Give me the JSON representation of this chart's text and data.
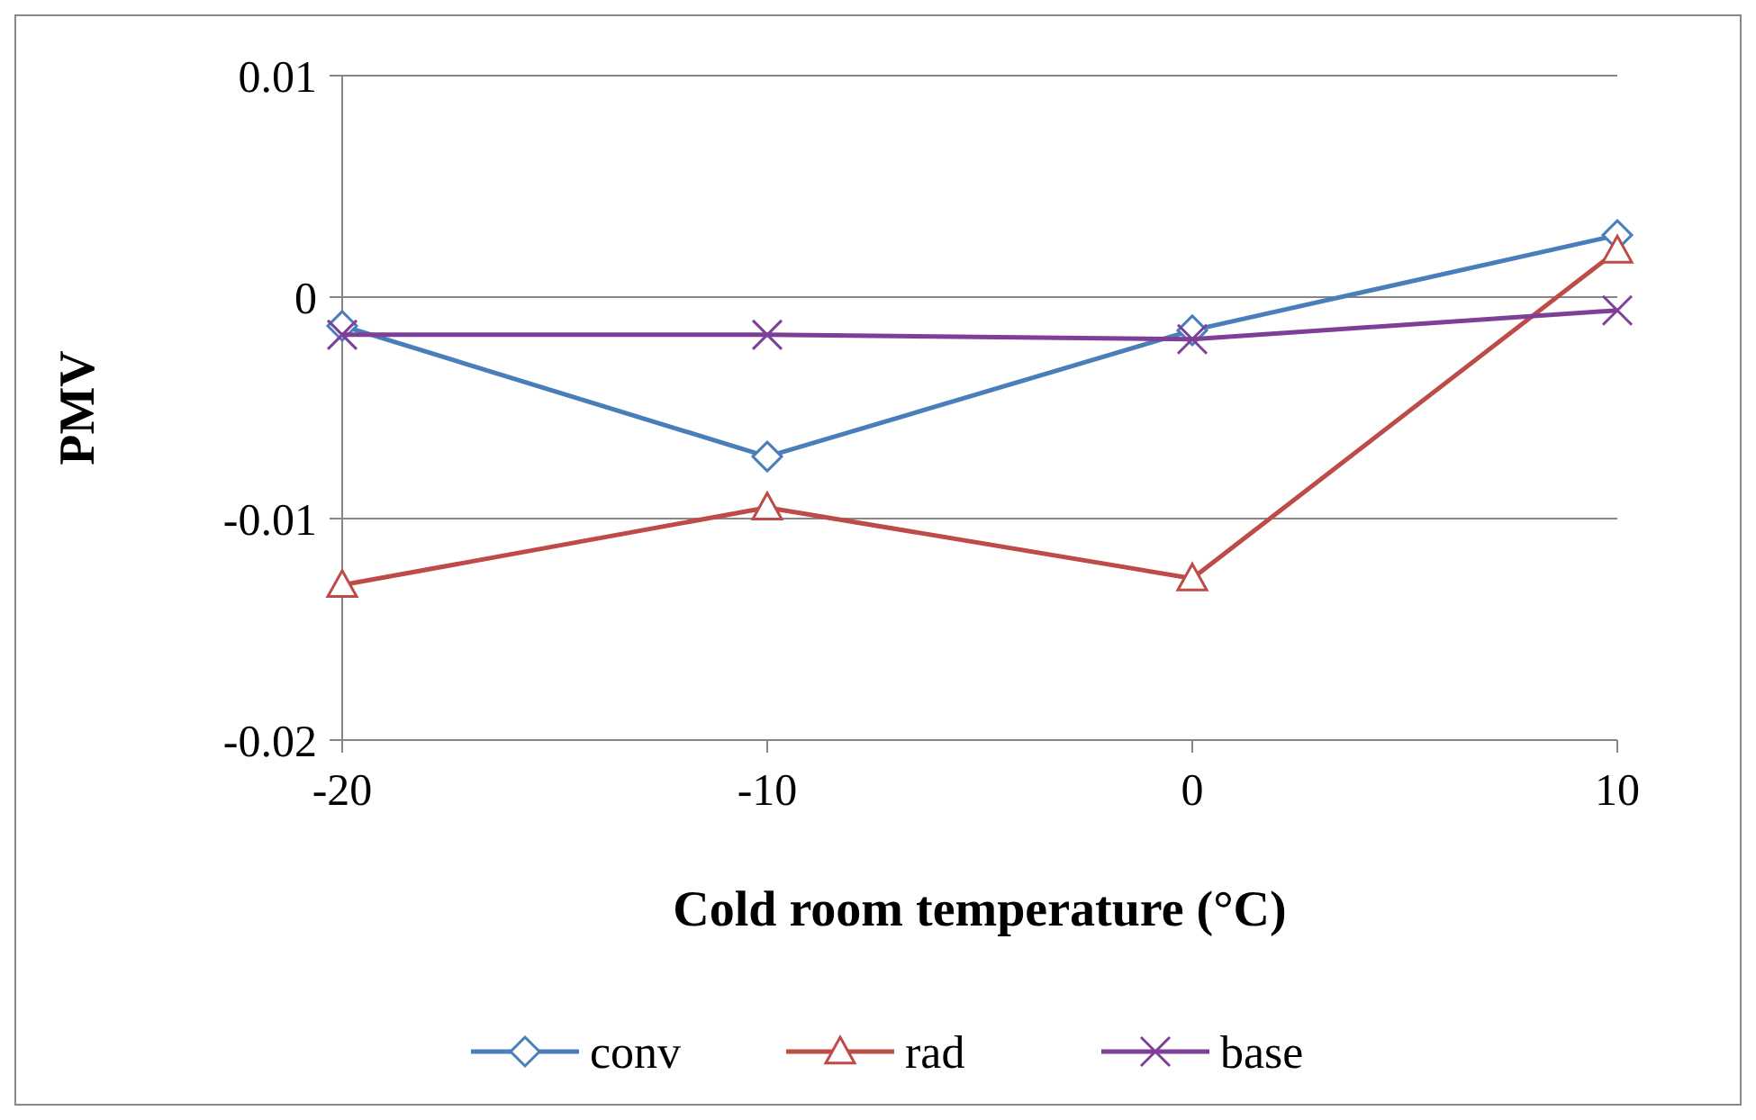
{
  "chart_data": {
    "type": "line",
    "xlabel": "Cold room temperature (°C)",
    "ylabel": "PMV",
    "x": [
      -20,
      -10,
      0,
      10
    ],
    "series": [
      {
        "name": "conv",
        "color": "#4a7ebb",
        "marker": "diamond",
        "values": [
          -0.0013,
          -0.0072,
          -0.0015,
          0.0028
        ]
      },
      {
        "name": "rad",
        "color": "#be4b48",
        "marker": "triangle",
        "values": [
          -0.013,
          -0.0095,
          -0.0127,
          0.0021
        ]
      },
      {
        "name": "base",
        "color": "#7d3f98",
        "marker": "cross",
        "values": [
          -0.0017,
          -0.0017,
          -0.0019,
          -0.0006
        ]
      }
    ],
    "xlim": [
      -20,
      10
    ],
    "xticks": [
      -20,
      -10,
      0,
      10
    ],
    "ylim": [
      -0.02,
      0.01
    ],
    "yticks": [
      -0.02,
      -0.01,
      0,
      0.01
    ],
    "grid": "y",
    "legend": "bottom"
  }
}
